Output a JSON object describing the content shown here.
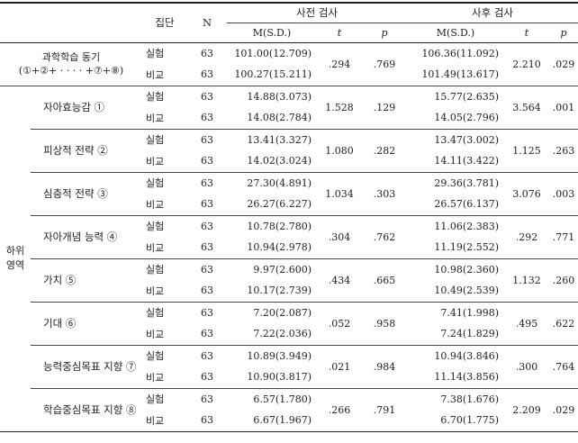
{
  "header": {
    "group": "집단",
    "n": "N",
    "pre": "사전 검사",
    "post": "사후 검사",
    "msd": "M(S.D.)",
    "t": "t",
    "p": "p"
  },
  "main_row": {
    "name_line1": "과학학습 동기",
    "name_line2": "(①+②+ · · · · +⑦+⑧)",
    "rows": [
      {
        "group": "실험",
        "n": "63",
        "pre_msd": "101.00(12.709)",
        "post_msd": "106.36(11.092)"
      },
      {
        "group": "비교",
        "n": "63",
        "pre_msd": "100.27(15.211)",
        "post_msd": "101.49(13.617)"
      }
    ],
    "pre_t": ".294",
    "pre_p": ".769",
    "post_t": "2.210",
    "post_p": ".029"
  },
  "region_label_line1": "하위",
  "region_label_line2": "영역",
  "subs": [
    {
      "name": "자아효능감 ①",
      "rows": [
        {
          "group": "실험",
          "n": "63",
          "pre_msd": "14.88(3.073)",
          "post_msd": "15.77(2.635)"
        },
        {
          "group": "비교",
          "n": "63",
          "pre_msd": "14.08(2.784)",
          "post_msd": "14.05(2.796)"
        }
      ],
      "pre_t": "1.528",
      "pre_p": ".129",
      "post_t": "3.564",
      "post_p": ".001"
    },
    {
      "name": "피상적 전략 ②",
      "rows": [
        {
          "group": "실험",
          "n": "63",
          "pre_msd": "13.41(3.327)",
          "post_msd": "13.47(3.002)"
        },
        {
          "group": "비교",
          "n": "63",
          "pre_msd": "14.02(3.024)",
          "post_msd": "14.11(3.422)"
        }
      ],
      "pre_t": "1.080",
      "pre_p": ".282",
      "post_t": "1.125",
      "post_p": ".263"
    },
    {
      "name": "심층적 전략 ③",
      "rows": [
        {
          "group": "실험",
          "n": "63",
          "pre_msd": "27.30(4.891)",
          "post_msd": "29.36(3.781)"
        },
        {
          "group": "비교",
          "n": "63",
          "pre_msd": "26.27(6.227)",
          "post_msd": "26.57(6.137)"
        }
      ],
      "pre_t": "1.034",
      "pre_p": ".303",
      "post_t": "3.076",
      "post_p": ".003"
    },
    {
      "name": "자아개념 능력 ④",
      "rows": [
        {
          "group": "실험",
          "n": "63",
          "pre_msd": "10.78(2.780)",
          "post_msd": "11.06(2.383)"
        },
        {
          "group": "비교",
          "n": "63",
          "pre_msd": "10.94(2.978)",
          "post_msd": "11.19(2.552)"
        }
      ],
      "pre_t": ".304",
      "pre_p": ".762",
      "post_t": ".292",
      "post_p": ".771"
    },
    {
      "name": "가치 ⑤",
      "rows": [
        {
          "group": "실험",
          "n": "63",
          "pre_msd": "9.97(2.600)",
          "post_msd": "10.98(2.360)"
        },
        {
          "group": "비교",
          "n": "63",
          "pre_msd": "10.17(2.739)",
          "post_msd": "10.49(2.539)"
        }
      ],
      "pre_t": ".434",
      "pre_p": ".665",
      "post_t": "1.132",
      "post_p": ".260"
    },
    {
      "name": "기대 ⑥",
      "rows": [
        {
          "group": "실험",
          "n": "63",
          "pre_msd": "7.20(2.087)",
          "post_msd": "7.41(1.998)"
        },
        {
          "group": "비교",
          "n": "63",
          "pre_msd": "7.22(2.036)",
          "post_msd": "7.24(1.829)"
        }
      ],
      "pre_t": ".052",
      "pre_p": ".958",
      "post_t": ".495",
      "post_p": ".622"
    },
    {
      "name": "능력중심목표 지향 ⑦",
      "rows": [
        {
          "group": "실험",
          "n": "63",
          "pre_msd": "10.89(3.949)",
          "post_msd": "10.94(3.846)"
        },
        {
          "group": "비교",
          "n": "63",
          "pre_msd": "10.90(3.817)",
          "post_msd": "11.14(3.856)"
        }
      ],
      "pre_t": ".021",
      "pre_p": ".984",
      "post_t": ".300",
      "post_p": ".764"
    },
    {
      "name": "학습중심목표 지향 ⑧",
      "rows": [
        {
          "group": "실험",
          "n": "63",
          "pre_msd": "6.57(1.780)",
          "post_msd": "7.38(1.676)"
        },
        {
          "group": "비교",
          "n": "63",
          "pre_msd": "6.67(1.967)",
          "post_msd": "6.70(1.775)"
        }
      ],
      "pre_t": ".266",
      "pre_p": ".791",
      "post_t": "2.209",
      "post_p": ".029"
    }
  ]
}
